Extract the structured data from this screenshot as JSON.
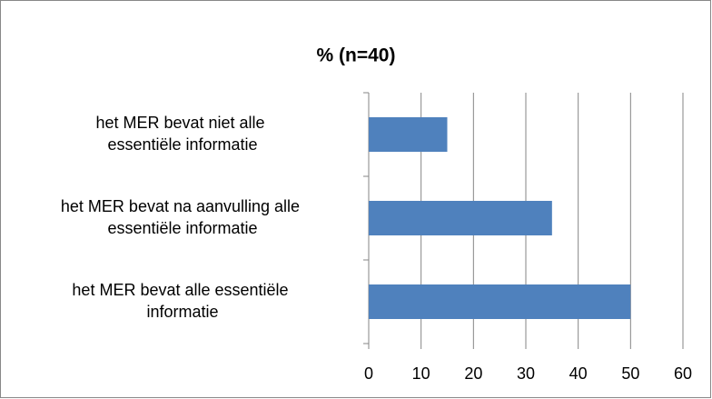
{
  "chart_data": {
    "type": "barh",
    "title": "% (n=40)",
    "categories": [
      "het MER bevat niet alle\nessentiële informatie",
      "het MER bevat na aanvulling alle\nessentiële informatie",
      "het MER bevat alle essentiële\ninformatie"
    ],
    "values": [
      15,
      35,
      50
    ],
    "color": "#4f81bd",
    "xlim": [
      0,
      60
    ],
    "xticks": [
      0,
      10,
      20,
      30,
      40,
      50,
      60
    ],
    "grid": true
  }
}
